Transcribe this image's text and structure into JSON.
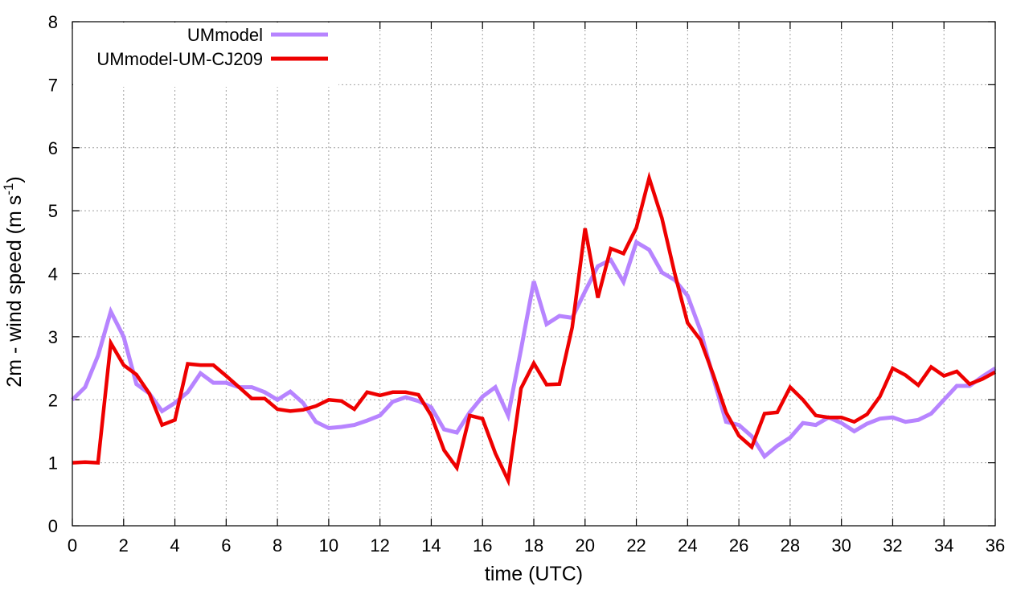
{
  "chart_data": {
    "type": "line",
    "xlabel": "time (UTC)",
    "ylabel": "2m - wind speed  (m s",
    "ylabel_superscript": "-1",
    "ylabel_close": ")",
    "xlim": [
      0,
      36
    ],
    "ylim": [
      0,
      8
    ],
    "x_ticks": [
      "0",
      "2",
      "4",
      "6",
      "8",
      "10",
      "12",
      "14",
      "16",
      "18",
      "20",
      "22",
      "24",
      "26",
      "28",
      "30",
      "32",
      "34",
      "36"
    ],
    "y_ticks": [
      "0",
      "1",
      "2",
      "3",
      "4",
      "5",
      "6",
      "7",
      "8"
    ],
    "grid": true,
    "legend_position": "top-left",
    "series": [
      {
        "name": "UMmodel",
        "color": "#b784ff",
        "x": [
          0,
          0.5,
          1,
          1.5,
          2,
          2.5,
          3,
          3.5,
          4,
          4.5,
          5,
          5.5,
          6,
          6.5,
          7,
          7.5,
          8,
          8.5,
          9,
          9.5,
          10,
          10.5,
          11,
          11.5,
          12,
          12.5,
          13,
          13.5,
          14,
          14.5,
          15,
          15.5,
          16,
          16.5,
          17,
          17.5,
          18,
          18.5,
          19,
          19.5,
          20,
          20.5,
          21,
          21.5,
          22,
          22.5,
          23,
          23.5,
          24,
          24.5,
          25,
          25.5,
          26,
          26.5,
          27,
          27.5,
          28,
          28.5,
          29,
          29.5,
          30,
          30.5,
          31,
          31.5,
          32,
          32.5,
          33,
          33.5,
          34,
          34.5,
          35,
          35.5,
          36
        ],
        "y": [
          2.0,
          2.2,
          2.7,
          3.4,
          3.0,
          2.25,
          2.1,
          1.82,
          1.95,
          2.12,
          2.42,
          2.27,
          2.27,
          2.2,
          2.2,
          2.12,
          2.0,
          2.13,
          1.95,
          1.65,
          1.55,
          1.57,
          1.6,
          1.67,
          1.75,
          1.97,
          2.04,
          1.98,
          1.88,
          1.53,
          1.48,
          1.8,
          2.05,
          2.2,
          1.75,
          2.8,
          3.88,
          3.2,
          3.33,
          3.3,
          3.72,
          4.12,
          4.22,
          3.87,
          4.5,
          4.38,
          4.02,
          3.9,
          3.65,
          3.1,
          2.35,
          1.65,
          1.6,
          1.42,
          1.1,
          1.27,
          1.4,
          1.63,
          1.6,
          1.72,
          1.63,
          1.5,
          1.62,
          1.7,
          1.72,
          1.65,
          1.68,
          1.78,
          2.0,
          2.22,
          2.22,
          2.37,
          2.5
        ]
      },
      {
        "name": "UMmodel-UM-CJ209",
        "color": "#ee0000",
        "x": [
          0,
          0.5,
          1,
          1.5,
          2,
          2.5,
          3,
          3.5,
          4,
          4.5,
          5,
          5.5,
          6,
          6.5,
          7,
          7.5,
          8,
          8.5,
          9,
          9.5,
          10,
          10.5,
          11,
          11.5,
          12,
          12.5,
          13,
          13.5,
          14,
          14.5,
          15,
          15.5,
          16,
          16.5,
          17,
          17.5,
          18,
          18.5,
          19,
          19.5,
          20,
          20.5,
          21,
          21.5,
          22,
          22.5,
          23,
          23.5,
          24,
          24.5,
          25,
          25.5,
          26,
          26.5,
          27,
          27.5,
          28,
          28.5,
          29,
          29.5,
          30,
          30.5,
          31,
          31.5,
          32,
          32.5,
          33,
          33.5,
          34,
          34.5,
          35,
          35.5,
          36
        ],
        "y": [
          1.0,
          1.01,
          1.0,
          2.9,
          2.55,
          2.4,
          2.1,
          1.6,
          1.68,
          2.57,
          2.55,
          2.55,
          2.38,
          2.2,
          2.02,
          2.02,
          1.85,
          1.82,
          1.84,
          1.9,
          2.0,
          1.98,
          1.85,
          2.12,
          2.07,
          2.12,
          2.12,
          2.08,
          1.75,
          1.2,
          0.92,
          1.75,
          1.7,
          1.15,
          0.72,
          2.18,
          2.58,
          2.24,
          2.25,
          3.15,
          4.72,
          3.62,
          4.4,
          4.32,
          4.73,
          5.52,
          4.88,
          4.0,
          3.22,
          2.95,
          2.4,
          1.8,
          1.43,
          1.25,
          1.78,
          1.8,
          2.2,
          2.0,
          1.75,
          1.72,
          1.72,
          1.65,
          1.77,
          2.05,
          2.5,
          2.39,
          2.23,
          2.52,
          2.38,
          2.45,
          2.25,
          2.33,
          2.44
        ]
      }
    ]
  }
}
